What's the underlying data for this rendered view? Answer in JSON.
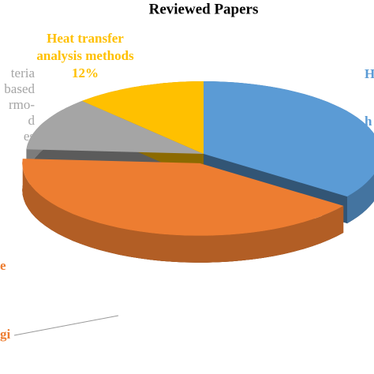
{
  "chart_data": {
    "type": "pie3d",
    "title": "Reviewed Papers",
    "labels": [
      [
        "H",
        "h"
      ],
      [
        "e",
        "gi"
      ],
      [
        "teria",
        "based",
        "rmo-",
        "d",
        "es"
      ],
      [
        "Heat transfer",
        "analysis methods"
      ]
    ],
    "values": [
      35,
      41,
      12,
      12
    ],
    "value_labels": [
      null,
      null,
      null,
      "12%"
    ],
    "colors": [
      "#5b9bd5",
      "#ed7d31",
      "#a5a5a5",
      "#ffc000"
    ],
    "label_colors": [
      "#5b9bd5",
      "#ed7d31",
      "#a5a5a5",
      "#ffc000"
    ]
  }
}
